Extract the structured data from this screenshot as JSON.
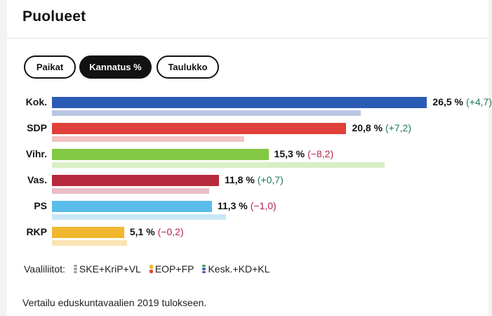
{
  "card": {
    "title": "Puolueet"
  },
  "tabs": [
    {
      "label": "Paikat",
      "active": false
    },
    {
      "label": "Kannatus %",
      "active": true
    },
    {
      "label": "Taulukko",
      "active": false
    }
  ],
  "chart_data": {
    "type": "bar",
    "orientation": "horizontal",
    "max_value": 30,
    "categories": [
      "Kok.",
      "SDP",
      "Vihr.",
      "Vas.",
      "PS",
      "RKP"
    ],
    "series": [
      {
        "values": [
          26.5,
          20.8,
          15.3,
          11.8,
          11.3,
          5.1
        ]
      },
      {
        "values": [
          21.8,
          13.6,
          23.5,
          11.1,
          12.3,
          5.3
        ]
      }
    ],
    "value_labels": [
      "26,5 %",
      "20,8 %",
      "15,3 %",
      "11,8 %",
      "11,3 %",
      "5,1 %"
    ],
    "change_labels": [
      "(+4,7)",
      "(+7,2)",
      "(−8,2)",
      "(+0,7)",
      "(−1,0)",
      "(−0,2)"
    ],
    "change_sign": [
      "pos",
      "pos",
      "neg",
      "pos",
      "neg",
      "neg"
    ],
    "colors": [
      "#2a5bb4",
      "#e0403a",
      "#83c944",
      "#b8293d",
      "#5abde9",
      "#f1b72f"
    ],
    "prev_colors": [
      "#b9c6e2",
      "#f2c4c3",
      "#d9efc6",
      "#e9bcc4",
      "#c9e8f7",
      "#fae4b4"
    ]
  },
  "legend": {
    "label": "Vaaliliitot:",
    "items": [
      {
        "label": "SKE+KriP+VL",
        "colors": [
          "#a0a0a0",
          "#a0a0a0",
          "#a0a0a0"
        ]
      },
      {
        "label": "EOP+FP",
        "colors": [
          "#f1b72f",
          "#e0403a"
        ]
      },
      {
        "label": "Kesk.+KD+KL",
        "colors": [
          "#3f9c4e",
          "#3b62b8",
          "#7b4ca0"
        ]
      }
    ]
  },
  "footer": {
    "note": "Vertailu eduskuntavaalien 2019 tulokseen."
  }
}
